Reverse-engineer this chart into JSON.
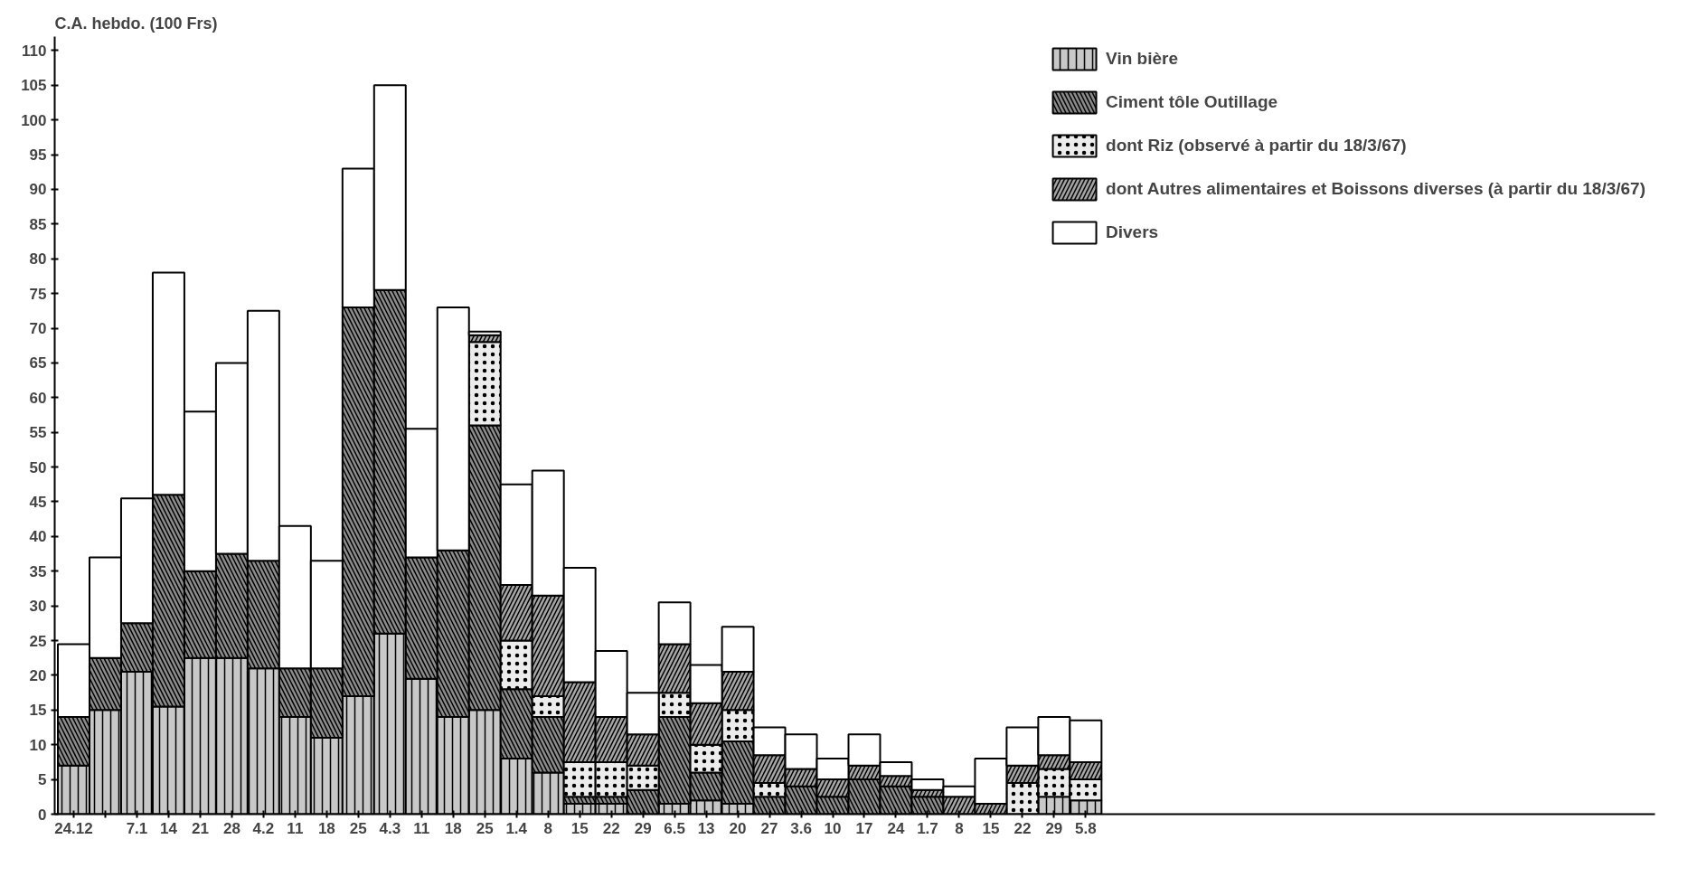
{
  "chart_data": {
    "type": "bar",
    "stacked": true,
    "ylabel": "C.A. hebdo. (100 Frs)",
    "categories": [
      "24.12",
      null,
      "7.1",
      "14",
      "21",
      "28",
      "4.2",
      "11",
      "18",
      "25",
      "4.3",
      "11",
      "18",
      "25",
      "1.4",
      "8",
      "15",
      "22",
      "29",
      "6.5",
      "13",
      "20",
      "27",
      "3.6",
      "10",
      "17",
      "24",
      "1.7",
      "8",
      "15",
      "22",
      "29",
      "5.8"
    ],
    "ylim": [
      0,
      112
    ],
    "yticks": [
      0,
      5,
      10,
      15,
      20,
      25,
      30,
      35,
      40,
      45,
      50,
      55,
      60,
      65,
      70,
      75,
      80,
      85,
      90,
      95,
      100,
      105,
      110
    ],
    "grid": false,
    "legend": "top right",
    "series": [
      {
        "name": "Vin bière",
        "color": "#c8c8c8",
        "values": [
          7,
          15,
          20.5,
          15.5,
          22.5,
          22.5,
          21,
          14,
          11,
          17,
          26,
          19.5,
          14,
          15,
          8,
          6,
          1.5,
          1.5,
          null,
          1.5,
          2,
          1.5,
          null,
          null,
          null,
          null,
          null,
          null,
          null,
          null,
          null,
          2.5,
          2
        ]
      },
      {
        "name": "Ciment tôle Outillage",
        "color": "#8c8c8c",
        "values": [
          7,
          7.5,
          7,
          30.5,
          12.5,
          15,
          15.5,
          7,
          10,
          56,
          49.5,
          17.5,
          24,
          41,
          10,
          8,
          1,
          1,
          3.5,
          12.5,
          4,
          9,
          2.5,
          4,
          2.5,
          5,
          4,
          2.5,
          null,
          null,
          null,
          null,
          null
        ]
      },
      {
        "name": "dont Riz (observé à partir du 18/3/67)",
        "color": "#ececec",
        "values": [
          null,
          null,
          null,
          null,
          null,
          null,
          null,
          null,
          null,
          null,
          null,
          null,
          null,
          12,
          7,
          3,
          5,
          5,
          3.5,
          3.5,
          4,
          4.5,
          2,
          null,
          null,
          null,
          null,
          null,
          null,
          null,
          4.5,
          4,
          3
        ]
      },
      {
        "name": "dont Autres alimentaires et Boissons diverses (à partir du 18/3/67)",
        "color": "#a6a6a6",
        "values": [
          null,
          null,
          null,
          null,
          null,
          null,
          null,
          null,
          null,
          null,
          null,
          null,
          null,
          1,
          8,
          14.5,
          11.5,
          6.5,
          4.5,
          7,
          6,
          5.5,
          4,
          2.5,
          2.5,
          2,
          1.5,
          1,
          2.5,
          1.5,
          2.5,
          2,
          2.5
        ]
      },
      {
        "name": "Divers",
        "color": "#ffffff",
        "values": [
          10.5,
          14.5,
          18,
          32,
          23,
          27.5,
          36,
          20.5,
          15.5,
          20,
          29.5,
          18.5,
          35,
          0.5,
          14.5,
          18,
          16.5,
          9.5,
          6,
          6,
          5.5,
          6.5,
          4,
          5,
          3,
          4.5,
          2,
          1.5,
          1.5,
          6.5,
          5.5,
          5.5,
          6
        ]
      }
    ]
  }
}
